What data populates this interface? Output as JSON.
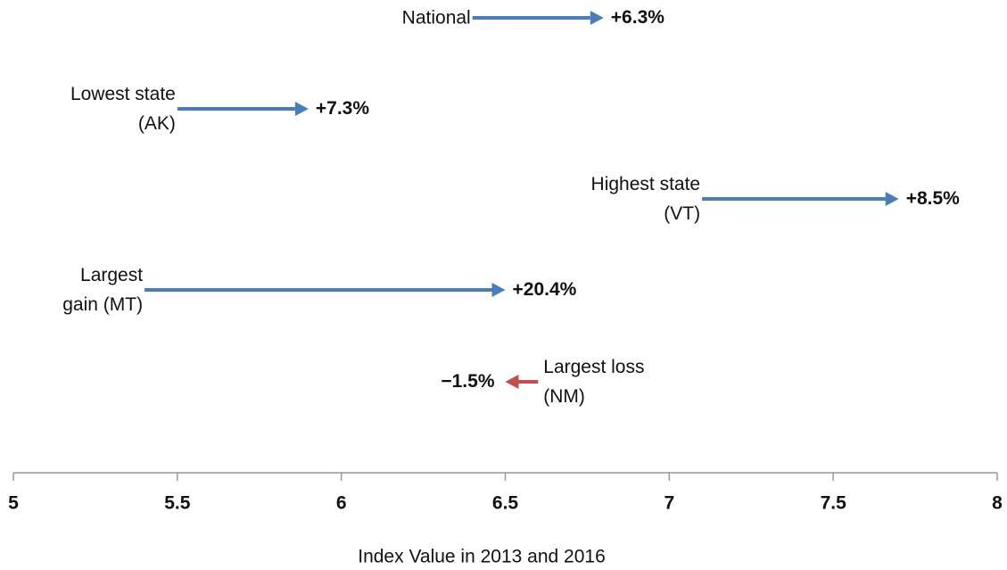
{
  "chart_data": {
    "type": "arrow",
    "categories": [
      "National",
      "Lowest state (AK)",
      "Highest state (VT)",
      "Largest gain (MT)",
      "Largest loss (NM)"
    ],
    "start": [
      6.4,
      5.5,
      7.1,
      5.4,
      6.6
    ],
    "end": [
      6.8,
      5.9,
      7.7,
      6.5,
      6.5
    ],
    "values": [
      6.3,
      7.3,
      8.5,
      20.4,
      -1.5
    ],
    "value_labels": [
      "+6.3%",
      "+7.3%",
      "+8.5%",
      "+20.4%",
      "−1.5%"
    ],
    "colors": [
      "#4a7ebb",
      "#4a7ebb",
      "#4a7ebb",
      "#4a7ebb",
      "#c0504d"
    ],
    "xlim": [
      5,
      8
    ],
    "xticks": [
      5,
      5.5,
      6,
      6.5,
      7,
      7.5,
      8
    ],
    "xlabel": "Index Value in 2013 and 2016"
  }
}
